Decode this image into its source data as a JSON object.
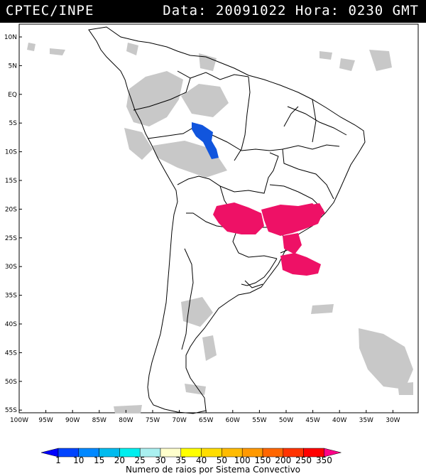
{
  "title": {
    "left": "CPTEC/INPE",
    "right": "Data: 20091022 Hora: 0230 GMT"
  },
  "map": {
    "lat_labels": [
      "10N",
      "5N",
      "EQ",
      "5S",
      "10S",
      "15S",
      "20S",
      "25S",
      "30S",
      "35S",
      "40S",
      "45S",
      "50S",
      "55S"
    ],
    "lon_labels": [
      "100W",
      "95W",
      "90W",
      "85W",
      "80W",
      "75W",
      "70W",
      "65W",
      "60W",
      "55W",
      "50W",
      "45W",
      "40W",
      "35W",
      "30W"
    ],
    "colors": {
      "cloud_gray": "#c8c8c8",
      "cloud_gray_dark": "#aaaaaa",
      "storm_magenta": "#ee1166",
      "storm_blue": "#1155dd",
      "border": "#000000"
    }
  },
  "legend": {
    "values": [
      "1",
      "10",
      "15",
      "20",
      "25",
      "30",
      "35",
      "40",
      "50",
      "100",
      "150",
      "200",
      "250",
      "350"
    ],
    "colors": [
      "#0000ff",
      "#0044ff",
      "#0088ff",
      "#00bbee",
      "#00eeee",
      "#aaf0f0",
      "#ffffcc",
      "#ffff00",
      "#ffdd00",
      "#ffbb00",
      "#ff9900",
      "#ff6600",
      "#ff3300",
      "#ff0000",
      "#ff0088"
    ],
    "caption": "Numero de raios por Sistema Convectivo"
  }
}
